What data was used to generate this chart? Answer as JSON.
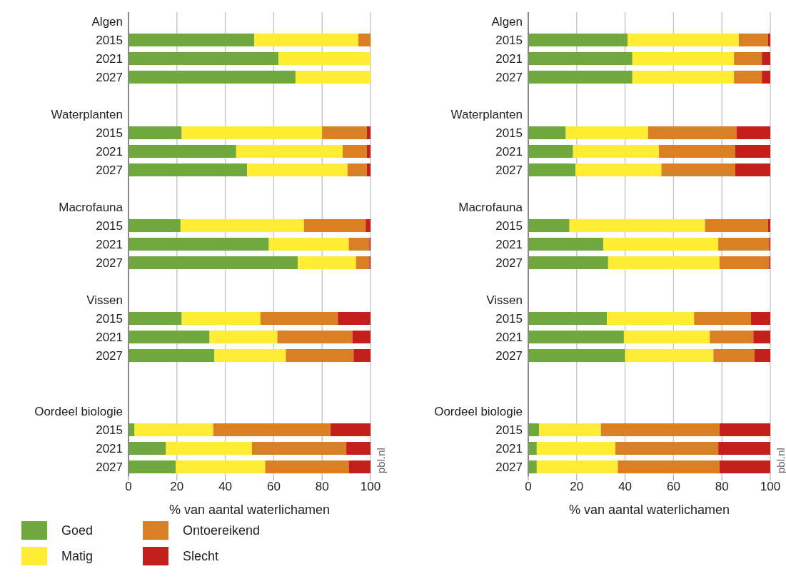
{
  "chart_data": [
    {
      "type": "bar",
      "orientation": "horizontal",
      "stacked": true,
      "categories": [
        "Algen",
        "2015",
        "2021",
        "2027",
        null,
        "Waterplanten",
        "2015",
        "2021",
        "2027",
        null,
        "Macrofauna",
        "2015",
        "2021",
        "2027",
        null,
        "Vissen",
        "2015",
        "2021",
        "2027",
        null,
        null,
        "Oordeel biologie",
        "2015",
        "2021",
        "2027"
      ],
      "series": [
        {
          "name": "Goed",
          "color": "#6fa83d",
          "values": [
            null,
            52,
            62,
            69,
            null,
            null,
            22,
            44.5,
            49,
            null,
            null,
            21.5,
            58,
            70,
            null,
            null,
            22,
            33.5,
            35.5,
            null,
            null,
            null,
            2.5,
            15.5,
            19.5
          ]
        },
        {
          "name": "Matig",
          "color": "#ffec33",
          "values": [
            null,
            43,
            38,
            31,
            null,
            null,
            58,
            44,
            41.5,
            null,
            null,
            51,
            33,
            24,
            null,
            null,
            32.5,
            28,
            29.5,
            null,
            null,
            null,
            32.5,
            35.5,
            37
          ]
        },
        {
          "name": "Ontoereikend",
          "color": "#d98024",
          "values": [
            null,
            5,
            0,
            0,
            null,
            null,
            18.5,
            10,
            8,
            null,
            null,
            25.5,
            8.5,
            5.5,
            null,
            null,
            32,
            31,
            28,
            null,
            null,
            null,
            48.5,
            39,
            34.5
          ]
        },
        {
          "name": "Slecht",
          "color": "#c4201b",
          "values": [
            null,
            0,
            0,
            0,
            null,
            null,
            1.5,
            1.5,
            1.5,
            null,
            null,
            2,
            0.5,
            0.5,
            null,
            null,
            13.5,
            7.5,
            7,
            null,
            null,
            null,
            16.5,
            10,
            9
          ]
        }
      ],
      "xlim": [
        0,
        100
      ],
      "xticks": [
        0,
        20,
        40,
        60,
        80,
        100
      ],
      "xlabel": "% van aantal waterlichamen",
      "grid": "x",
      "legend": "bottom",
      "annotations": [
        "pbl.nl"
      ]
    },
    {
      "type": "bar",
      "orientation": "horizontal",
      "stacked": true,
      "categories": [
        "Algen",
        "2015",
        "2021",
        "2027",
        null,
        "Waterplanten",
        "2015",
        "2021",
        "2027",
        null,
        "Macrofauna",
        "2015",
        "2021",
        "2027",
        null,
        "Vissen",
        "2015",
        "2021",
        "2027",
        null,
        null,
        "Oordeel biologie",
        "2015",
        "2021",
        "2027"
      ],
      "series": [
        {
          "color": "#6fa83d",
          "values": [
            null,
            41,
            43,
            43,
            null,
            null,
            15.5,
            18.5,
            19.5,
            null,
            null,
            17,
            31,
            33,
            null,
            null,
            32.5,
            39.5,
            40,
            null,
            null,
            null,
            4.5,
            3.5,
            3.5
          ]
        },
        {
          "color": "#ffec33",
          "values": [
            null,
            46,
            42,
            42,
            null,
            null,
            34,
            35.5,
            35.5,
            null,
            null,
            56,
            47.5,
            46,
            null,
            null,
            36,
            35.5,
            36.5,
            null,
            null,
            null,
            25.5,
            32.5,
            33.5
          ]
        },
        {
          "color": "#d98024",
          "values": [
            null,
            12,
            11.5,
            11.5,
            null,
            null,
            36.5,
            31.5,
            30.5,
            null,
            null,
            26,
            21,
            20.5,
            null,
            null,
            23.5,
            18,
            17,
            null,
            null,
            null,
            49,
            42.5,
            42
          ]
        },
        {
          "color": "#c4201b",
          "values": [
            null,
            1,
            3.5,
            3.5,
            null,
            null,
            14,
            14.5,
            14.5,
            null,
            null,
            1,
            0.5,
            0.5,
            null,
            null,
            8,
            7,
            6.5,
            null,
            null,
            null,
            21,
            21.5,
            21
          ]
        }
      ],
      "xlim": [
        0,
        100
      ],
      "xticks": [
        0,
        20,
        40,
        60,
        80,
        100
      ],
      "xlabel": "% van aantal waterlichamen",
      "grid": "x",
      "legend": false,
      "annotations": [
        "pbl.nl"
      ]
    }
  ]
}
